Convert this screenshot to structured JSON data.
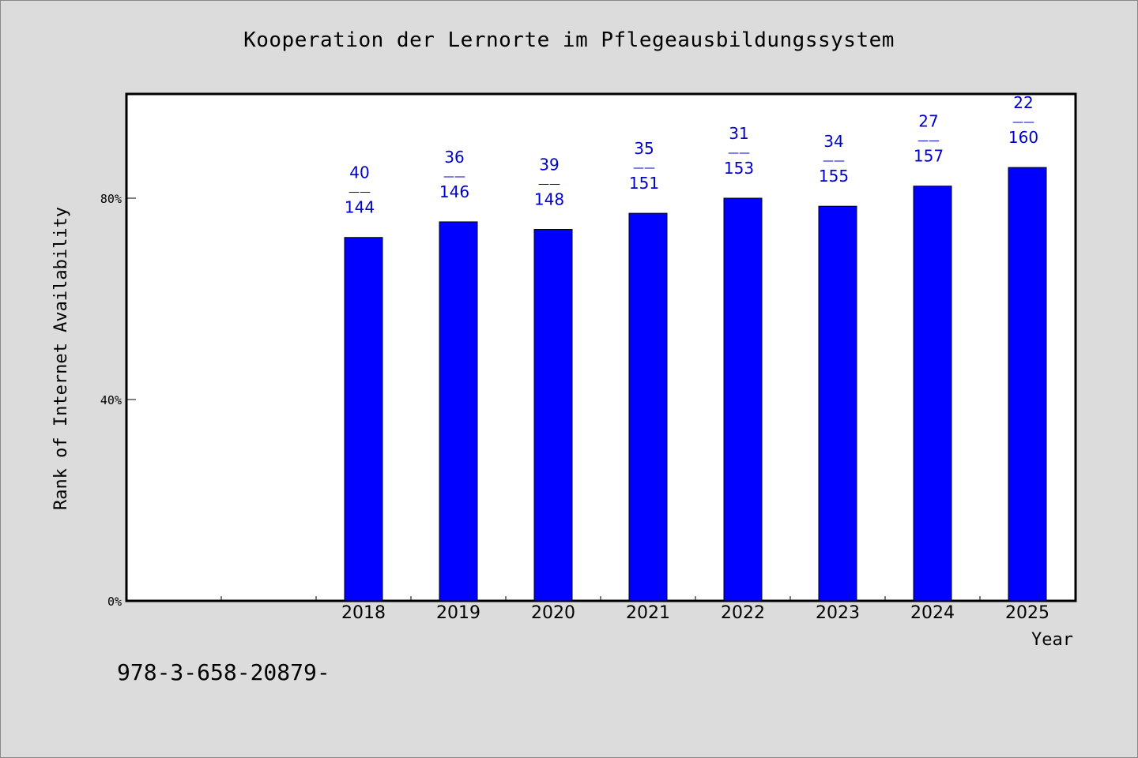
{
  "chart_data": {
    "type": "bar",
    "title": "Kooperation der Lernorte im Pflegeausbildungssystem",
    "xlabel": "Year",
    "ylabel": "Rank of Internet Availability",
    "y_ticks": [
      "0%",
      "40%",
      "80%"
    ],
    "categories": [
      "2018",
      "2019",
      "2020",
      "2021",
      "2022",
      "2023",
      "2024",
      "2025"
    ],
    "values": [
      72.2,
      75.3,
      73.8,
      77.0,
      80.0,
      78.4,
      82.4,
      86.1
    ],
    "ylim": [
      0,
      100
    ],
    "labels": [
      {
        "top": "40",
        "sep": "——",
        "bottom": "144"
      },
      {
        "top": "36",
        "sep": "——",
        "bottom": "146"
      },
      {
        "top": "39",
        "sep": "——",
        "bottom": "148"
      },
      {
        "top": "35",
        "sep": "——",
        "bottom": "151"
      },
      {
        "top": "31",
        "sep": "——",
        "bottom": "153"
      },
      {
        "top": "34",
        "sep": "——",
        "bottom": "155"
      },
      {
        "top": "27",
        "sep": "——",
        "bottom": "157"
      },
      {
        "top": "22",
        "sep": "——",
        "bottom": "160"
      }
    ],
    "bar_color": "#0000ff",
    "label_color": "#0000cc",
    "grid": false,
    "legend": "none"
  },
  "footer_text": "978-3-658-20879-"
}
